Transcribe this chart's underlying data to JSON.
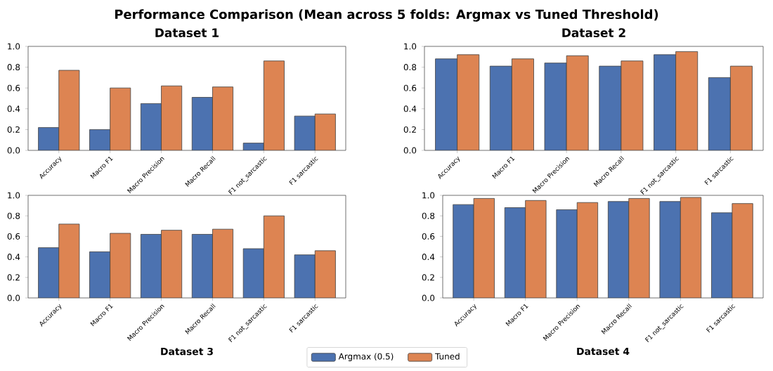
{
  "chart_data": [
    {
      "type": "bar",
      "title": "Dataset 1",
      "annotations": [
        "Performance Comparison (Mean across 5 folds: Argmax vs Tuned Threshold)"
      ],
      "categories": [
        "Accuracy",
        "Macro F1",
        "Macro Precision",
        "Macro Recall",
        "F1 not_sarcastic",
        "F1 sarcastic"
      ],
      "series": [
        {
          "color": "#4c72b0",
          "values": [
            0.22,
            0.2,
            0.45,
            0.51,
            0.07,
            0.33
          ]
        },
        {
          "color": "#dd8452",
          "values": [
            0.77,
            0.6,
            0.62,
            0.61,
            0.86,
            0.35
          ]
        }
      ],
      "ylim": [
        0,
        1
      ],
      "yticks": [
        {
          "value": 0,
          "label": "0.0"
        },
        {
          "value": 0.2,
          "label": "0.2"
        },
        {
          "value": 0.4,
          "label": "0.4"
        },
        {
          "value": 0.6,
          "label": "0.6"
        },
        {
          "value": 0.8,
          "label": "0.8"
        },
        {
          "value": 1,
          "label": "1.0"
        }
      ]
    },
    {
      "type": "bar",
      "title": "Dataset 2",
      "categories": [
        "Accuracy",
        "Macro F1",
        "Macro Precision",
        "Macro Recall",
        "F1 not_sarcastic",
        "F1 sarcastic"
      ],
      "series": [
        {
          "color": "#4c72b0",
          "values": [
            0.88,
            0.81,
            0.84,
            0.81,
            0.92,
            0.7
          ]
        },
        {
          "color": "#dd8452",
          "values": [
            0.92,
            0.88,
            0.91,
            0.86,
            0.95,
            0.81
          ]
        }
      ],
      "ylim": [
        0,
        1
      ],
      "yticks": [
        {
          "value": 0,
          "label": "0.0"
        },
        {
          "value": 0.2,
          "label": "0.2"
        },
        {
          "value": 0.4,
          "label": "0.4"
        },
        {
          "value": 0.6,
          "label": "0.6"
        },
        {
          "value": 0.8,
          "label": "0.8"
        },
        {
          "value": 1,
          "label": "1.0"
        }
      ]
    },
    {
      "type": "bar",
      "xlabel": "Dataset 3",
      "legend": "bottom",
      "categories": [
        "Accuracy",
        "Macro F1",
        "Macro Precision",
        "Macro Recall",
        "F1 not_sarcastic",
        "F1 sarcastic"
      ],
      "series": [
        {
          "name": "Argmax (0.5)",
          "color": "#4c72b0",
          "values": [
            0.49,
            0.45,
            0.62,
            0.62,
            0.48,
            0.42
          ]
        },
        {
          "name": "Tuned",
          "color": "#dd8452",
          "values": [
            0.72,
            0.63,
            0.66,
            0.67,
            0.8,
            0.46
          ]
        }
      ],
      "ylim": [
        0,
        1
      ],
      "yticks": [
        {
          "value": 0,
          "label": "0.0"
        },
        {
          "value": 0.2,
          "label": "0.2"
        },
        {
          "value": 0.4,
          "label": "0.4"
        },
        {
          "value": 0.6,
          "label": "0.6"
        },
        {
          "value": 0.8,
          "label": "0.8"
        },
        {
          "value": 1,
          "label": "1.0"
        }
      ]
    },
    {
      "type": "bar",
      "xlabel": "Dataset 4",
      "categories": [
        "Accuracy",
        "Macro F1",
        "Macro Precision",
        "Macro Recall",
        "F1 not_sarcastic",
        "F1 sarcastic"
      ],
      "series": [
        {
          "color": "#4c72b0",
          "values": [
            0.91,
            0.88,
            0.86,
            0.94,
            0.94,
            0.83
          ]
        },
        {
          "color": "#dd8452",
          "values": [
            0.97,
            0.95,
            0.93,
            0.97,
            0.98,
            0.92
          ]
        }
      ],
      "ylim": [
        0,
        1
      ],
      "yticks": [
        {
          "value": 0,
          "label": "0.0"
        },
        {
          "value": 0.2,
          "label": "0.2"
        },
        {
          "value": 0.4,
          "label": "0.4"
        },
        {
          "value": 0.6,
          "label": "0.6"
        },
        {
          "value": 0.8,
          "label": "0.8"
        },
        {
          "value": 1,
          "label": "1.0"
        }
      ]
    }
  ]
}
